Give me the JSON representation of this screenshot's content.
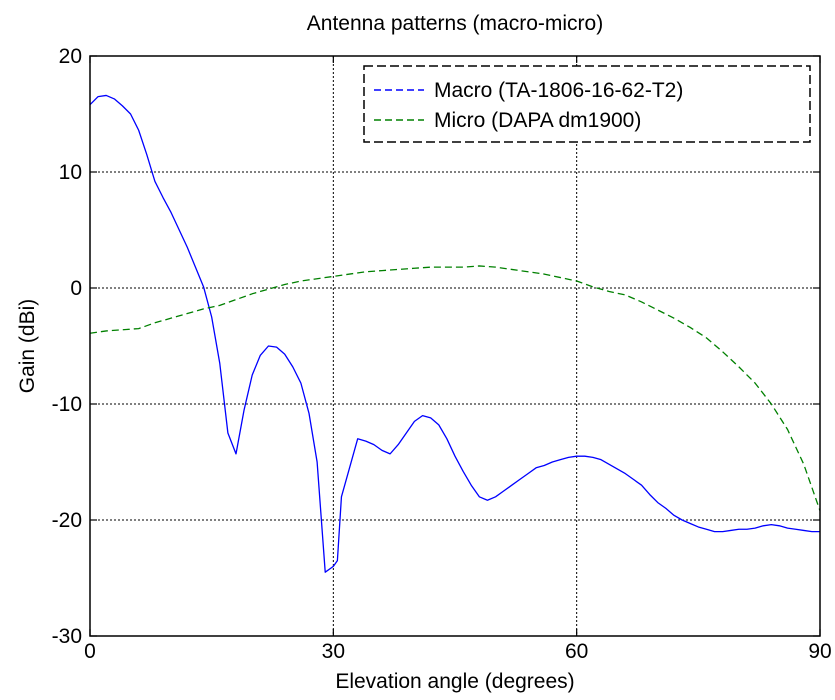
{
  "chart_data": {
    "type": "line",
    "title": "Antenna patterns (macro-micro)",
    "xlabel": "Elevation angle (degrees)",
    "ylabel": "Gain (dBi)",
    "xlim": [
      0,
      90
    ],
    "ylim": [
      -30,
      20
    ],
    "xticks": [
      0,
      30,
      60,
      90
    ],
    "yticks": [
      20,
      10,
      0,
      -10,
      -20,
      -30
    ],
    "xtick_labels": [
      "0",
      "30",
      "60",
      "90"
    ],
    "ytick_labels": [
      "20",
      "10",
      "0",
      "-10",
      "-20",
      "-30"
    ],
    "grid": true,
    "legend_position": "top-right",
    "series": [
      {
        "name": "Macro (TA-1806-16-62-T2)",
        "color": "#0000ff",
        "line_style": "solid",
        "x": [
          0,
          1,
          2,
          3,
          4,
          5,
          6,
          7,
          8,
          9,
          10,
          11,
          12,
          13,
          14,
          15,
          16,
          17,
          18,
          19,
          20,
          21,
          22,
          23,
          24,
          25,
          26,
          27,
          28,
          29,
          30,
          30.5,
          31,
          32,
          33,
          34,
          35,
          36,
          37,
          38,
          39,
          40,
          41,
          42,
          43,
          44,
          45,
          46,
          47,
          48,
          49,
          50,
          51,
          52,
          53,
          54,
          55,
          56,
          57,
          58,
          59,
          60,
          61,
          62,
          63,
          64,
          65,
          66,
          67,
          68,
          69,
          70,
          71,
          72,
          73,
          74,
          75,
          76,
          77,
          78,
          79,
          80,
          81,
          82,
          83,
          84,
          85,
          86,
          87,
          88,
          89,
          90
        ],
        "y": [
          15.8,
          16.5,
          16.6,
          16.3,
          15.7,
          15.0,
          13.6,
          11.5,
          9.2,
          7.8,
          6.5,
          5.0,
          3.5,
          1.8,
          0.1,
          -2.5,
          -6.5,
          -12.5,
          -14.3,
          -10.5,
          -7.5,
          -5.8,
          -5.0,
          -5.1,
          -5.7,
          -6.8,
          -8.2,
          -10.8,
          -15.0,
          -24.5,
          -24.0,
          -23.5,
          -18.0,
          -15.5,
          -13.0,
          -13.2,
          -13.5,
          -14.0,
          -14.3,
          -13.5,
          -12.5,
          -11.5,
          -11.0,
          -11.2,
          -11.8,
          -13.0,
          -14.5,
          -15.8,
          -17.0,
          -18.0,
          -18.3,
          -18.0,
          -17.5,
          -17.0,
          -16.5,
          -16.0,
          -15.5,
          -15.3,
          -15.0,
          -14.8,
          -14.6,
          -14.5,
          -14.5,
          -14.6,
          -14.8,
          -15.2,
          -15.6,
          -16.0,
          -16.5,
          -17.0,
          -17.8,
          -18.5,
          -19.0,
          -19.6,
          -20.0,
          -20.3,
          -20.6,
          -20.8,
          -21.0,
          -21.0,
          -20.9,
          -20.8,
          -20.8,
          -20.7,
          -20.5,
          -20.4,
          -20.5,
          -20.7,
          -20.8,
          -20.9,
          -21.0,
          -21.0
        ]
      },
      {
        "name": "Micro (DAPA dm1900)",
        "color": "#008000",
        "line_style": "dashed",
        "x": [
          0,
          2,
          4,
          6,
          8,
          10,
          12,
          14,
          16,
          18,
          20,
          22,
          24,
          26,
          28,
          30,
          32,
          34,
          36,
          38,
          40,
          42,
          44,
          46,
          48,
          50,
          52,
          54,
          56,
          58,
          60,
          62,
          64,
          66,
          68,
          70,
          72,
          74,
          76,
          78,
          80,
          82,
          84,
          86,
          88,
          90
        ],
        "y": [
          -3.9,
          -3.7,
          -3.6,
          -3.5,
          -3.0,
          -2.6,
          -2.2,
          -1.8,
          -1.5,
          -1.0,
          -0.5,
          -0.1,
          0.3,
          0.6,
          0.8,
          1.0,
          1.2,
          1.4,
          1.5,
          1.6,
          1.7,
          1.8,
          1.8,
          1.8,
          1.9,
          1.8,
          1.6,
          1.4,
          1.2,
          0.9,
          0.6,
          0.1,
          -0.3,
          -0.6,
          -1.2,
          -1.9,
          -2.6,
          -3.4,
          -4.3,
          -5.5,
          -6.8,
          -8.2,
          -10.0,
          -12.2,
          -15.2,
          -19.2
        ]
      }
    ]
  }
}
